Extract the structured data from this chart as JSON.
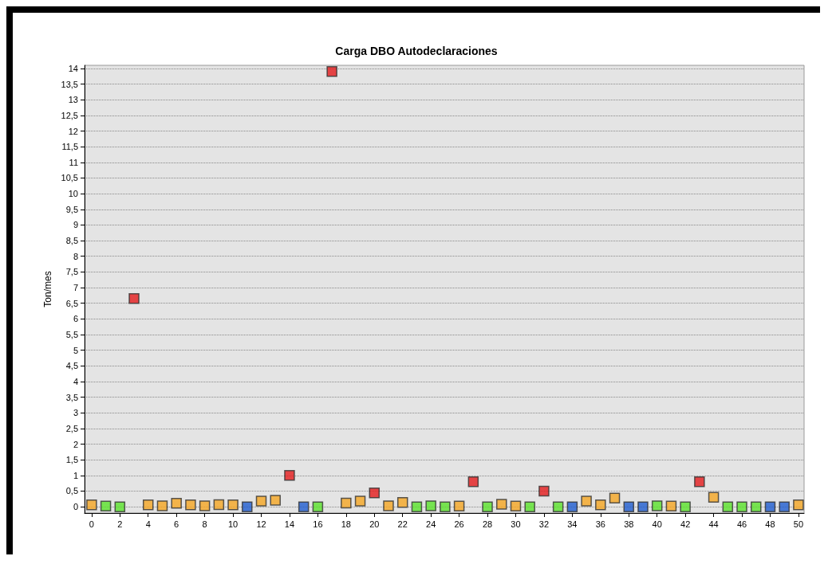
{
  "chart_data": {
    "type": "scatter",
    "title": "Carga DBO Autodeclaraciones",
    "ylabel": "Ton/mes",
    "x": [
      0,
      1,
      2,
      3,
      4,
      5,
      6,
      7,
      8,
      9,
      10,
      11,
      12,
      13,
      14,
      15,
      16,
      17,
      18,
      19,
      20,
      21,
      22,
      23,
      24,
      25,
      26,
      27,
      28,
      29,
      30,
      31,
      32,
      33,
      34,
      35,
      36,
      37,
      38,
      39,
      40,
      41,
      42,
      43,
      44,
      45,
      46,
      47,
      48,
      49,
      50
    ],
    "values": [
      0.06,
      0.02,
      0,
      6.65,
      0.06,
      0.03,
      0.11,
      0.06,
      0.03,
      0.07,
      0.06,
      0,
      0.18,
      0.21,
      1.0,
      0,
      0,
      13.9,
      0.12,
      0.18,
      0.44,
      0.03,
      0.14,
      0,
      0.03,
      0,
      0.02,
      0.8,
      0,
      0.08,
      0.02,
      0,
      0.5,
      0,
      0,
      0.18,
      0.06,
      0.28,
      0,
      0,
      0.03,
      0.02,
      0,
      0.8,
      0.3,
      0,
      0,
      0,
      0,
      0,
      0.06
    ],
    "colors": [
      "#f5a623",
      "#5ae22a",
      "#5ae22a",
      "#e31a1c",
      "#f5a623",
      "#f5a623",
      "#f5a623",
      "#f5a623",
      "#f5a623",
      "#f5a623",
      "#f5a623",
      "#1f5ccf",
      "#f5a623",
      "#f5a623",
      "#e31a1c",
      "#1f5ccf",
      "#5ae22a",
      "#e31a1c",
      "#f5a623",
      "#f5a623",
      "#e31a1c",
      "#f5a623",
      "#f5a623",
      "#5ae22a",
      "#5ae22a",
      "#5ae22a",
      "#f5a623",
      "#e31a1c",
      "#5ae22a",
      "#f5a623",
      "#f5a623",
      "#5ae22a",
      "#e31a1c",
      "#5ae22a",
      "#1f5ccf",
      "#f5a623",
      "#f5a623",
      "#f5a623",
      "#1f5ccf",
      "#1f5ccf",
      "#5ae22a",
      "#f5a623",
      "#5ae22a",
      "#e31a1c",
      "#f5a623",
      "#5ae22a",
      "#5ae22a",
      "#5ae22a",
      "#1f5ccf",
      "#1f5ccf",
      "#f5a623"
    ],
    "xlim": [
      -0.5,
      50.4
    ],
    "xticks": [
      0,
      2,
      4,
      6,
      8,
      10,
      12,
      14,
      16,
      18,
      20,
      22,
      24,
      26,
      28,
      30,
      32,
      34,
      36,
      38,
      40,
      42,
      44,
      46,
      48,
      50
    ],
    "ylim": [
      -0.2,
      14.1
    ],
    "yticks": [
      0,
      {
        "value": 0.5,
        "label": "0,5"
      },
      1,
      {
        "value": 1.5,
        "label": "1,5"
      },
      2,
      {
        "value": 2.5,
        "label": "2,5"
      },
      3,
      {
        "value": 3.5,
        "label": "3,5"
      },
      4,
      {
        "value": 4.5,
        "label": "4,5"
      },
      5,
      {
        "value": 5.5,
        "label": "5,5"
      },
      6,
      {
        "value": 6.5,
        "label": "6,5"
      },
      7,
      {
        "value": 7.5,
        "label": "7,5"
      },
      8,
      {
        "value": 8.5,
        "label": "8,5"
      },
      9,
      {
        "value": 9.5,
        "label": "9,5"
      },
      10,
      {
        "value": 10.5,
        "label": "10,5"
      },
      11,
      {
        "value": 11.5,
        "label": "11,5"
      },
      12,
      {
        "value": 12.5,
        "label": "12,5"
      },
      13,
      {
        "value": 13.5,
        "label": "13,5"
      },
      14
    ],
    "grid": "y",
    "marker": "square"
  }
}
